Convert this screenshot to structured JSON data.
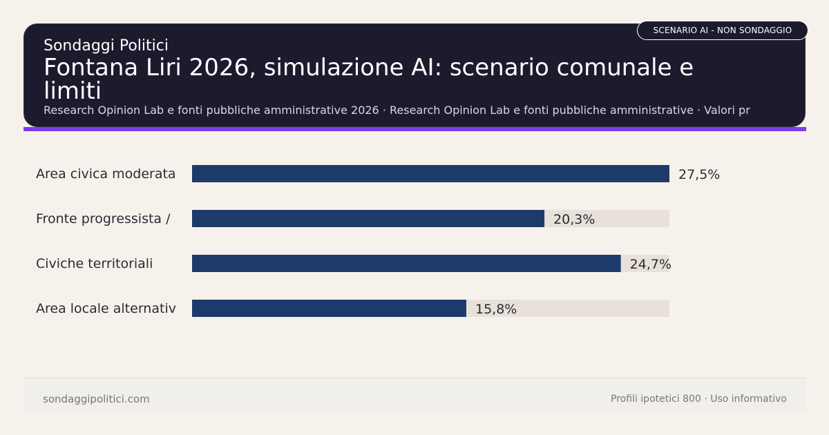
{
  "header": {
    "brand": "Sondaggi Politici",
    "title": "Fontana Liri 2026, simulazione AI: scenario comunale e limiti",
    "subtitle": "Research Opinion Lab e fonti pubbliche amministrative 2026 · Research Opinion Lab e fonti pubbliche amministrative · Valori pr",
    "badge": "SCENARIO AI - NON SONDAGGIO"
  },
  "chart_data": {
    "type": "bar",
    "orientation": "horizontal",
    "categories": [
      "Area civica moderata",
      "Fronte progressista /",
      "Civiche territoriali",
      "Area locale alternativ"
    ],
    "values": [
      27.5,
      20.3,
      24.7,
      15.8
    ],
    "value_labels": [
      "27,5%",
      "20,3%",
      "24,7%",
      "15,8%"
    ],
    "xlim": [
      0,
      27.5
    ],
    "bar_color": "#1e3a6b",
    "track_color": "#e7e1d9"
  },
  "footer": {
    "left": "sondaggipolitici.com",
    "right": "Profili ipotetici 800 · Uso informativo"
  },
  "colors": {
    "background": "#f6f2eb",
    "header_bg": "#1c1b2e",
    "accent": "#7c3aed"
  }
}
